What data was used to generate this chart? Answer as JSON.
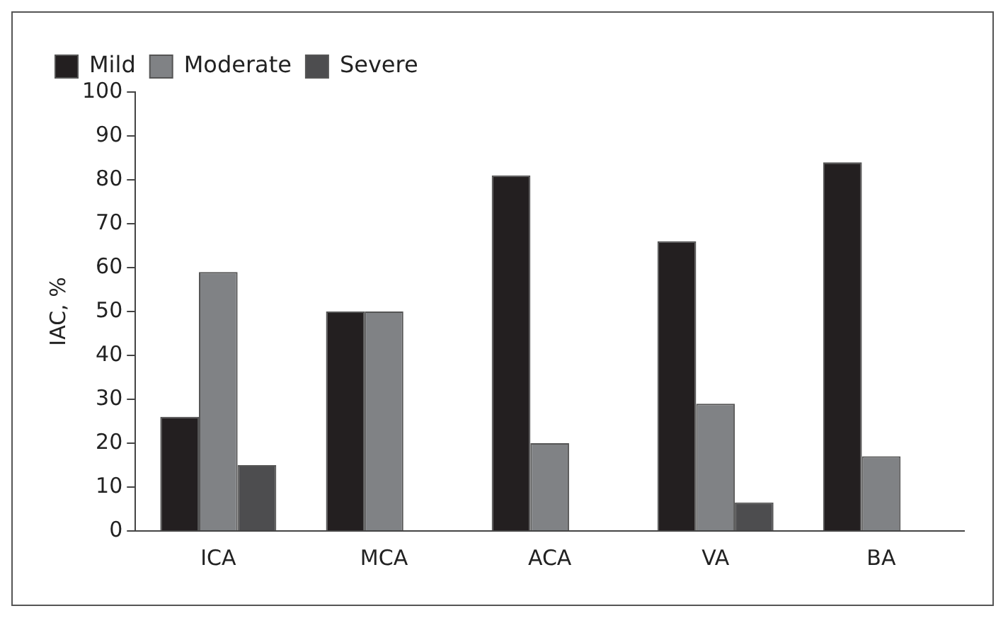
{
  "chart_data": {
    "type": "bar",
    "ylabel": "IAC, %",
    "categories": [
      "ICA",
      "MCA",
      "ACA",
      "VA",
      "BA"
    ],
    "series": [
      {
        "name": "Mild",
        "color": "#231f20",
        "values": [
          26,
          50,
          81,
          66,
          84
        ]
      },
      {
        "name": "Moderate",
        "color": "#808285",
        "values": [
          59,
          50,
          20,
          29,
          17
        ]
      },
      {
        "name": "Severe",
        "color": "#4d4d4f",
        "values": [
          15,
          0,
          0,
          6.5,
          0
        ]
      }
    ],
    "ylim": [
      0,
      100
    ],
    "yticks": [
      0,
      10,
      20,
      30,
      40,
      50,
      60,
      70,
      80,
      90,
      100
    ],
    "grid": false,
    "legend": "top left"
  }
}
